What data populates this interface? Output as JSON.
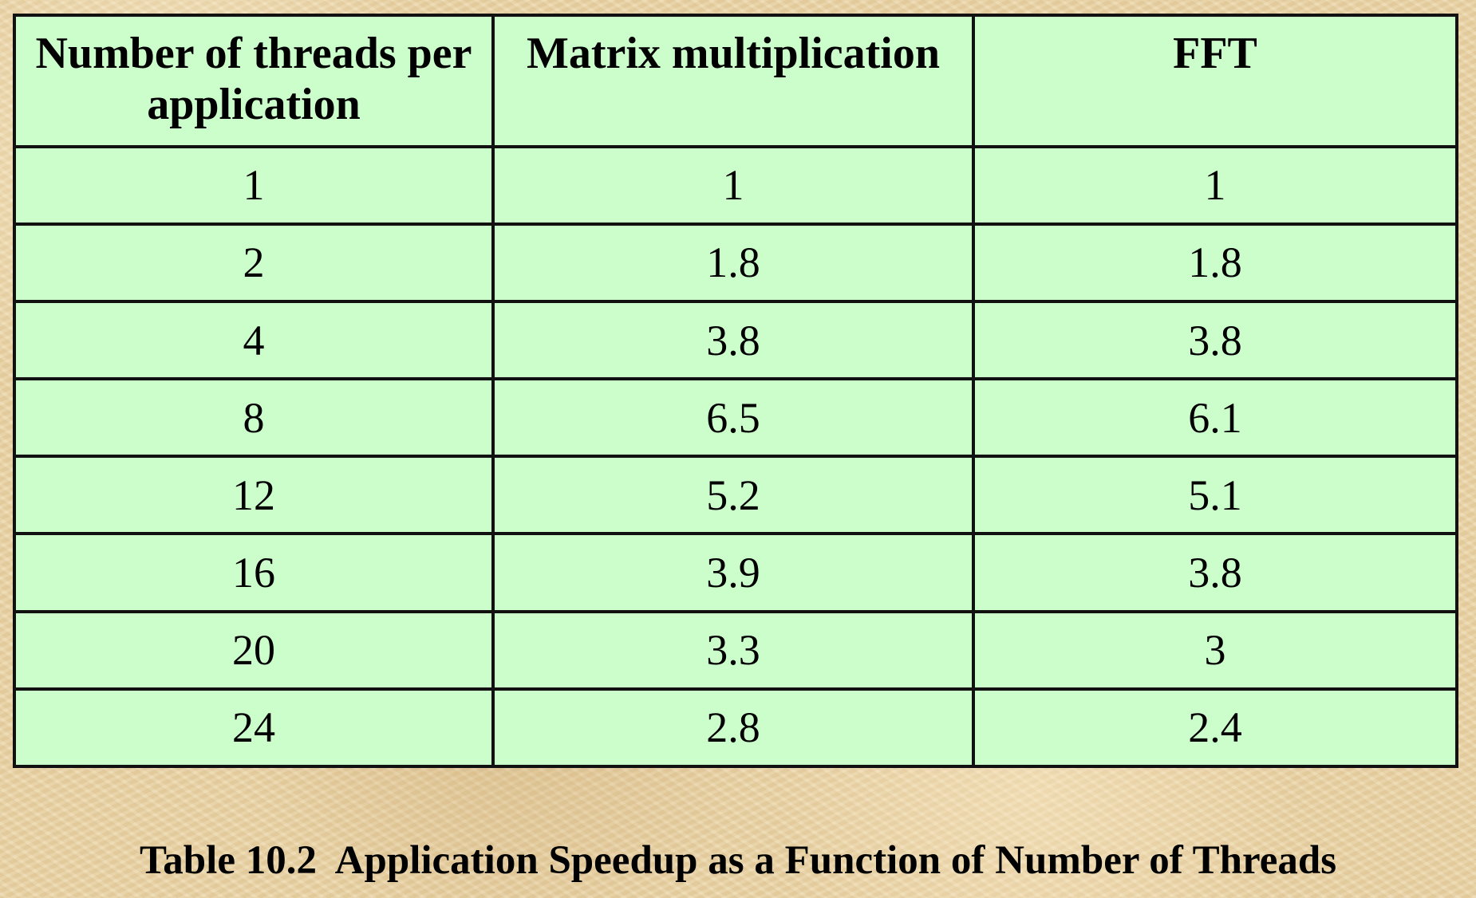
{
  "chart_data": {
    "type": "table",
    "columns": [
      "Number of threads per application",
      "Matrix multiplication",
      "FFT"
    ],
    "rows": [
      [
        "1",
        "1",
        "1"
      ],
      [
        "2",
        "1.8",
        "1.8"
      ],
      [
        "4",
        "3.8",
        "3.8"
      ],
      [
        "8",
        "6.5",
        "6.1"
      ],
      [
        "12",
        "5.2",
        "5.1"
      ],
      [
        "16",
        "3.9",
        "3.8"
      ],
      [
        "20",
        "3.3",
        "3"
      ],
      [
        "24",
        "2.8",
        "2.4"
      ]
    ],
    "caption": "Table 10.2  Application Speedup as a Function of Number of Threads"
  },
  "colors": {
    "table_fill": "#ccfecc",
    "border": "#111111",
    "background": "#e9d3a6"
  }
}
